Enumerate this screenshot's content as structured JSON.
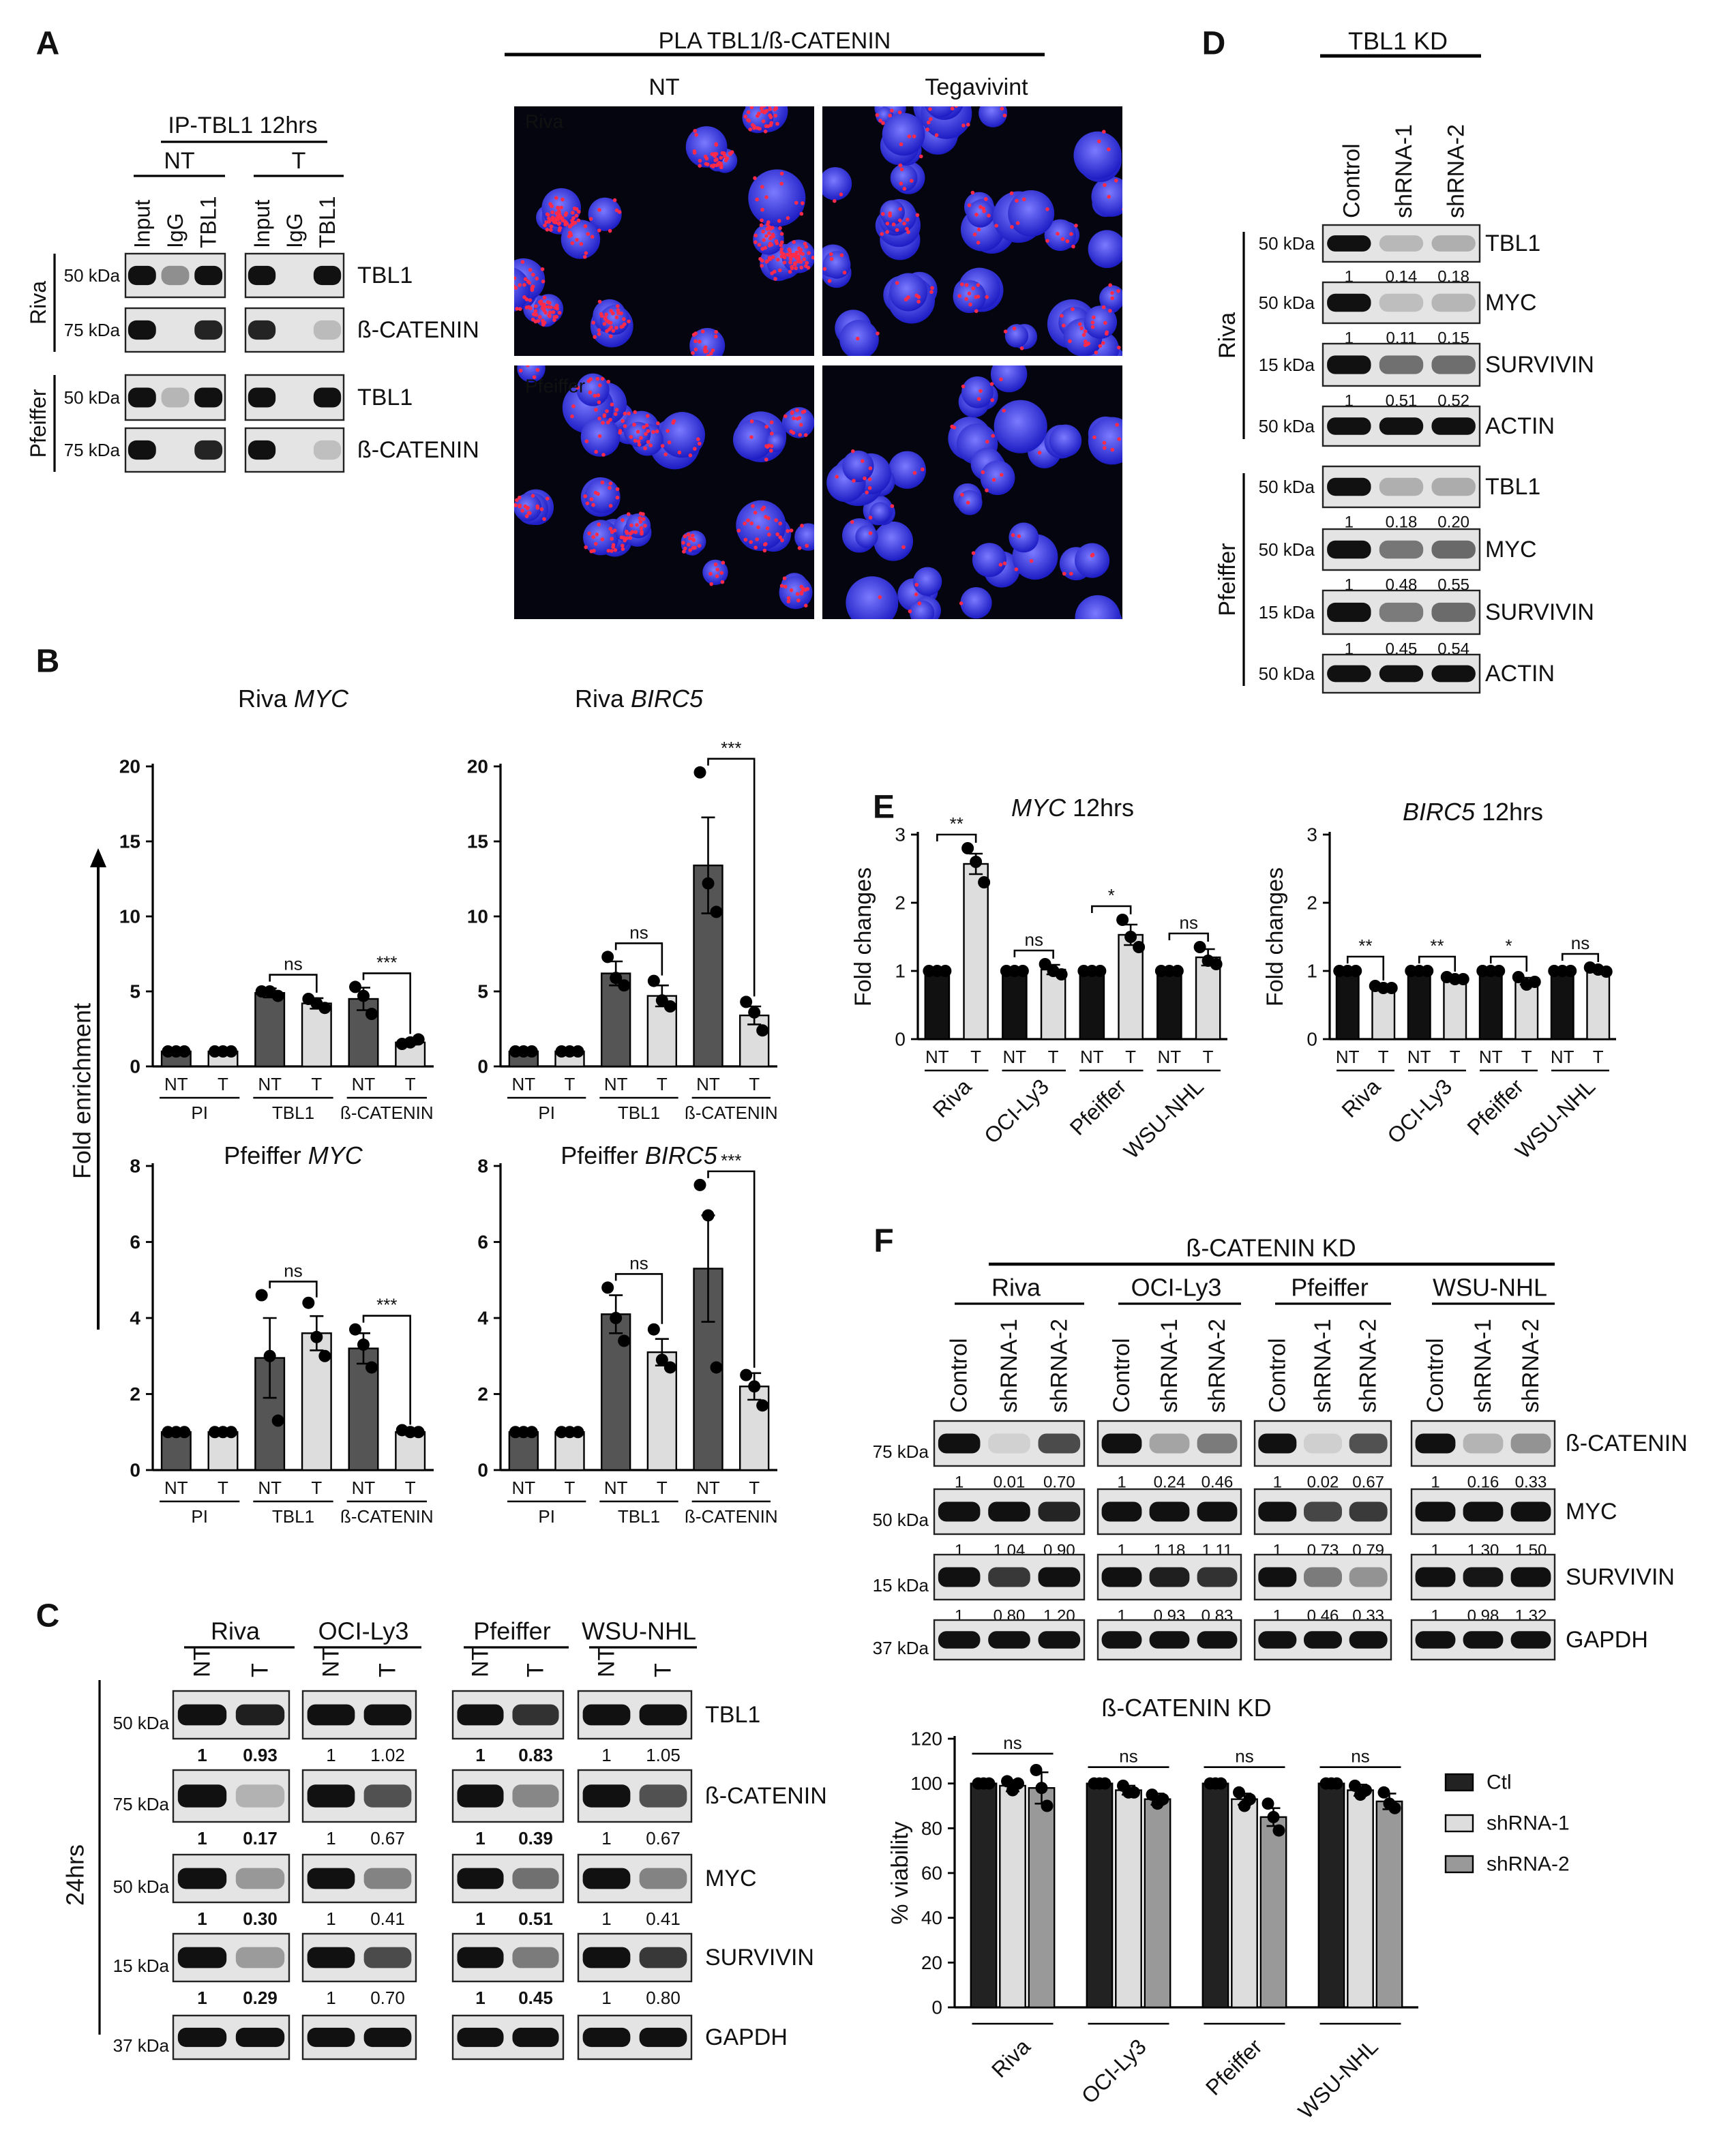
{
  "panel_labels": [
    "A",
    "B",
    "C",
    "D",
    "E",
    "F"
  ],
  "panel_a": {
    "ip": {
      "title": "IP-TBL1 12hrs",
      "groups": [
        "NT",
        "T"
      ],
      "lanes": [
        "Input",
        "IgG",
        "TBL1"
      ],
      "cell_lines": [
        {
          "name": "Riva",
          "rows": [
            {
              "protein": "TBL1",
              "kda": "50 kDa"
            },
            {
              "protein": "ß-CATENIN",
              "kda": "75 kDa"
            }
          ]
        },
        {
          "name": "Pfeiffer",
          "rows": [
            {
              "protein": "TBL1",
              "kda": "50 kDa"
            },
            {
              "protein": "ß-CATENIN",
              "kda": "75 kDa"
            }
          ]
        }
      ]
    },
    "pla": {
      "title": "PLA TBL1/ß-CATENIN",
      "columns": [
        "NT",
        "Tegavivint"
      ],
      "rows": [
        "Riva",
        "Pfeiffer"
      ]
    }
  },
  "panel_b": {
    "ylabel": "Fold enrichment"
  },
  "panel_c": {
    "time": "24hrs",
    "lanes": [
      "NT",
      "T"
    ],
    "cell_lines": [
      {
        "name": "Riva",
        "bold": true
      },
      {
        "name": "OCI-Ly3",
        "bold": false
      },
      {
        "name": "Pfeiffer",
        "bold": true
      },
      {
        "name": "WSU-NHL",
        "bold": false
      }
    ],
    "rows": [
      {
        "protein": "TBL1",
        "kda": "50 kDa",
        "quant": [
          [
            "1",
            "0.93"
          ],
          [
            "1",
            "1.02"
          ],
          [
            "1",
            "0.83"
          ],
          [
            "1",
            "1.05"
          ]
        ]
      },
      {
        "protein": "ß-CATENIN",
        "kda": "75 kDa",
        "quant": [
          [
            "1",
            "0.17"
          ],
          [
            "1",
            "0.67"
          ],
          [
            "1",
            "0.39"
          ],
          [
            "1",
            "0.67"
          ]
        ]
      },
      {
        "protein": "MYC",
        "kda": "50 kDa",
        "quant": [
          [
            "1",
            "0.30"
          ],
          [
            "1",
            "0.41"
          ],
          [
            "1",
            "0.51"
          ],
          [
            "1",
            "0.41"
          ]
        ]
      },
      {
        "protein": "SURVIVIN",
        "kda": "15 kDa",
        "quant": [
          [
            "1",
            "0.29"
          ],
          [
            "1",
            "0.70"
          ],
          [
            "1",
            "0.45"
          ],
          [
            "1",
            "0.80"
          ]
        ]
      },
      {
        "protein": "GAPDH",
        "kda": "37 kDa"
      }
    ]
  },
  "panel_d": {
    "title": "TBL1 KD",
    "lanes": [
      "Control",
      "shRNA-1",
      "shRNA-2"
    ],
    "cell_lines": [
      {
        "name": "Riva",
        "rows": [
          {
            "protein": "TBL1",
            "kda": "50 kDa",
            "quant": [
              "1",
              "0.14",
              "0.18"
            ]
          },
          {
            "protein": "MYC",
            "kda": "50 kDa",
            "quant": [
              "1",
              "0.11",
              "0.15"
            ]
          },
          {
            "protein": "SURVIVIN",
            "kda": "15 kDa",
            "quant": [
              "1",
              "0.51",
              "0.52"
            ]
          },
          {
            "protein": "ACTIN",
            "kda": "50 kDa"
          }
        ]
      },
      {
        "name": "Pfeiffer",
        "rows": [
          {
            "protein": "TBL1",
            "kda": "50 kDa",
            "quant": [
              "1",
              "0.18",
              "0.20"
            ]
          },
          {
            "protein": "MYC",
            "kda": "50 kDa",
            "quant": [
              "1",
              "0.48",
              "0.55"
            ]
          },
          {
            "protein": "SURVIVIN",
            "kda": "15 kDa",
            "quant": [
              "1",
              "0.45",
              "0.54"
            ]
          },
          {
            "protein": "ACTIN",
            "kda": "50 kDa"
          }
        ]
      }
    ]
  },
  "panel_f_blot": {
    "title": "ß-CATENIN KD",
    "lanes": [
      "Control",
      "shRNA-1",
      "shRNA-2"
    ],
    "cell_lines": [
      "Riva",
      "OCI-Ly3",
      "Pfeiffer",
      "WSU-NHL"
    ],
    "rows": [
      {
        "protein": "ß-CATENIN",
        "kda": "75 kDa",
        "quant": [
          [
            "1",
            "0.01",
            "0.70"
          ],
          [
            "1",
            "0.24",
            "0.46"
          ],
          [
            "1",
            "0.02",
            "0.67"
          ],
          [
            "1",
            "0.16",
            "0.33"
          ]
        ]
      },
      {
        "protein": "MYC",
        "kda": "50 kDa",
        "quant": [
          [
            "1",
            "1.04",
            "0.90"
          ],
          [
            "1",
            "1.18",
            "1.11"
          ],
          [
            "1",
            "0.73",
            "0.79"
          ],
          [
            "1",
            "1.30",
            "1.50"
          ]
        ]
      },
      {
        "protein": "SURVIVIN",
        "kda": "15 kDa",
        "quant": [
          [
            "1",
            "0.80",
            "1.20"
          ],
          [
            "1",
            "0.93",
            "0.83"
          ],
          [
            "1",
            "0.46",
            "0.33"
          ],
          [
            "1",
            "0.98",
            "1.32"
          ]
        ]
      },
      {
        "protein": "GAPDH",
        "kda": "37 kDa"
      }
    ]
  },
  "chart_data": [
    {
      "type": "bar",
      "title": [
        {
          "text": "Riva"
        },
        {
          "text": "MYC",
          "italic": true
        }
      ],
      "categories": [
        "NT",
        "T",
        "NT",
        "T",
        "NT",
        "T"
      ],
      "groups": [
        "PI",
        "TBL1",
        "ß-CATENIN"
      ],
      "group_style": "underline",
      "values": [
        1,
        1,
        4.9,
        4.2,
        4.5,
        1.6
      ],
      "errors": [
        0.05,
        0.05,
        0.3,
        0.35,
        0.75,
        0.15
      ],
      "points": [
        [
          1,
          1,
          1
        ],
        [
          1,
          1,
          1
        ],
        [
          5.0,
          5.0,
          4.7
        ],
        [
          4.5,
          4.2,
          3.9
        ],
        [
          5.3,
          4.7,
          3.5
        ],
        [
          1.5,
          1.6,
          1.8
        ]
      ],
      "colors": [
        "#555555",
        "#dddddd",
        "#555555",
        "#dddddd",
        "#555555",
        "#dddddd"
      ],
      "ylim": [
        0,
        20
      ],
      "yticks": [
        0,
        5,
        10,
        15,
        20
      ],
      "brackets": [
        {
          "from": 2,
          "to": 3,
          "label": "ns"
        },
        {
          "from": 4,
          "to": 5,
          "label": "***"
        }
      ]
    },
    {
      "type": "bar",
      "title": [
        {
          "text": "Riva"
        },
        {
          "text": "BIRC5",
          "italic": true
        }
      ],
      "categories": [
        "NT",
        "T",
        "NT",
        "T",
        "NT",
        "T"
      ],
      "groups": [
        "PI",
        "TBL1",
        "ß-CATENIN"
      ],
      "group_style": "underline",
      "values": [
        1,
        1,
        6.2,
        4.7,
        13.4,
        3.4
      ],
      "errors": [
        0.05,
        0.05,
        0.8,
        0.7,
        3.2,
        0.6
      ],
      "points": [
        [
          1,
          1,
          1
        ],
        [
          1,
          1,
          1
        ],
        [
          7.3,
          5.9,
          5.4
        ],
        [
          5.7,
          4.4,
          4.0
        ],
        [
          19.6,
          12.2,
          10.3
        ],
        [
          4.3,
          3.6,
          2.4
        ]
      ],
      "colors": [
        "#555555",
        "#dddddd",
        "#555555",
        "#dddddd",
        "#555555",
        "#dddddd"
      ],
      "ylim": [
        0,
        20
      ],
      "yticks": [
        0,
        5,
        10,
        15,
        20
      ],
      "brackets": [
        {
          "from": 2,
          "to": 3,
          "label": "ns"
        },
        {
          "from": 4,
          "to": 5,
          "label": "***"
        }
      ]
    },
    {
      "type": "bar",
      "title": [
        {
          "text": "Pfeiffer"
        },
        {
          "text": "MYC",
          "italic": true
        }
      ],
      "categories": [
        "NT",
        "T",
        "NT",
        "T",
        "NT",
        "T"
      ],
      "groups": [
        "PI",
        "TBL1",
        "ß-CATENIN"
      ],
      "group_style": "underline",
      "values": [
        1,
        1,
        2.95,
        3.6,
        3.2,
        1.0
      ],
      "errors": [
        0.02,
        0.02,
        1.05,
        0.45,
        0.4,
        0.05
      ],
      "points": [
        [
          1,
          1,
          1
        ],
        [
          1,
          1,
          1
        ],
        [
          4.6,
          3.0,
          1.3
        ],
        [
          4.4,
          3.5,
          3.0
        ],
        [
          3.7,
          3.3,
          2.7
        ],
        [
          1.05,
          1.0,
          1.0
        ]
      ],
      "colors": [
        "#555555",
        "#dddddd",
        "#555555",
        "#dddddd",
        "#555555",
        "#dddddd"
      ],
      "ylim": [
        0,
        8
      ],
      "yticks": [
        0,
        2,
        4,
        6,
        8
      ],
      "brackets": [
        {
          "from": 2,
          "to": 3,
          "label": "ns"
        },
        {
          "from": 4,
          "to": 5,
          "label": "***"
        }
      ]
    },
    {
      "type": "bar",
      "title": [
        {
          "text": "Pfeiffer"
        },
        {
          "text": "BIRC5",
          "italic": true
        }
      ],
      "categories": [
        "NT",
        "T",
        "NT",
        "T",
        "NT",
        "T"
      ],
      "groups": [
        "PI",
        "TBL1",
        "ß-CATENIN"
      ],
      "group_style": "underline",
      "values": [
        1,
        1,
        4.1,
        3.1,
        5.3,
        2.2
      ],
      "errors": [
        0.02,
        0.02,
        0.5,
        0.35,
        1.4,
        0.35
      ],
      "points": [
        [
          1,
          1,
          1
        ],
        [
          1,
          1,
          1
        ],
        [
          4.8,
          4.0,
          3.4
        ],
        [
          3.7,
          2.9,
          2.7
        ],
        [
          7.5,
          6.7,
          2.7
        ],
        [
          2.5,
          2.2,
          1.7
        ]
      ],
      "colors": [
        "#555555",
        "#dddddd",
        "#555555",
        "#dddddd",
        "#555555",
        "#dddddd"
      ],
      "ylim": [
        0,
        8
      ],
      "yticks": [
        0,
        2,
        4,
        6,
        8
      ],
      "brackets": [
        {
          "from": 2,
          "to": 3,
          "label": "ns"
        },
        {
          "from": 4,
          "to": 5,
          "label": "***"
        }
      ]
    },
    {
      "type": "bar",
      "title": [
        {
          "text": "MYC",
          "italic": true
        },
        {
          "text": "12hrs"
        }
      ],
      "ylabel": "Fold changes",
      "categories": [
        "NT",
        "T",
        "NT",
        "T",
        "NT",
        "T",
        "NT",
        "T"
      ],
      "groups": [
        "Riva",
        "OCI-Ly3",
        "Pfeiffer",
        "WSU-NHL"
      ],
      "group_style": "rotated",
      "values": [
        1,
        2.57,
        1,
        1.02,
        1,
        1.53,
        1,
        1.2
      ],
      "errors": [
        0.01,
        0.15,
        0.01,
        0.07,
        0.01,
        0.15,
        0.01,
        0.12
      ],
      "points": [
        [
          1,
          1,
          1
        ],
        [
          2.8,
          2.6,
          2.3
        ],
        [
          1,
          1,
          1
        ],
        [
          1.1,
          1.0,
          0.95
        ],
        [
          1,
          1,
          1
        ],
        [
          1.75,
          1.5,
          1.35
        ],
        [
          1,
          1,
          1
        ],
        [
          1.35,
          1.15,
          1.1
        ]
      ],
      "colors": [
        "#111111",
        "#dddddd",
        "#111111",
        "#dddddd",
        "#111111",
        "#dddddd",
        "#111111",
        "#dddddd"
      ],
      "ylim": [
        0,
        3
      ],
      "yticks": [
        0,
        1,
        2,
        3
      ],
      "brackets": [
        {
          "from": 0,
          "to": 1,
          "label": "**"
        },
        {
          "from": 2,
          "to": 3,
          "label": "ns"
        },
        {
          "from": 4,
          "to": 5,
          "label": "*"
        },
        {
          "from": 6,
          "to": 7,
          "label": "ns"
        }
      ]
    },
    {
      "type": "bar",
      "title": [
        {
          "text": "BIRC5",
          "italic": true
        },
        {
          "text": "12hrs"
        }
      ],
      "ylabel": "Fold changes",
      "categories": [
        "NT",
        "T",
        "NT",
        "T",
        "NT",
        "T",
        "NT",
        "T"
      ],
      "groups": [
        "Riva",
        "OCI-Ly3",
        "Pfeiffer",
        "WSU-NHL"
      ],
      "group_style": "rotated",
      "values": [
        1,
        0.76,
        1,
        0.89,
        1,
        0.85,
        1,
        1.02
      ],
      "errors": [
        0.01,
        0.02,
        0.01,
        0.02,
        0.01,
        0.05,
        0.01,
        0.03
      ],
      "points": [
        [
          1,
          1,
          1
        ],
        [
          0.78,
          0.75,
          0.75
        ],
        [
          1,
          1,
          1
        ],
        [
          0.91,
          0.88,
          0.88
        ],
        [
          1,
          1,
          1
        ],
        [
          0.91,
          0.8,
          0.84
        ],
        [
          1,
          1,
          1
        ],
        [
          1.05,
          1.02,
          0.99
        ]
      ],
      "colors": [
        "#111111",
        "#dddddd",
        "#111111",
        "#dddddd",
        "#111111",
        "#dddddd",
        "#111111",
        "#dddddd"
      ],
      "ylim": [
        0,
        3
      ],
      "yticks": [
        0,
        1,
        2,
        3
      ],
      "brackets": [
        {
          "from": 0,
          "to": 1,
          "label": "**"
        },
        {
          "from": 2,
          "to": 3,
          "label": "**"
        },
        {
          "from": 4,
          "to": 5,
          "label": "*"
        },
        {
          "from": 6,
          "to": 7,
          "label": "ns"
        }
      ]
    },
    {
      "type": "grouped_bar",
      "title": [
        {
          "text": "ß-CATENIN KD"
        }
      ],
      "ylabel": "% viability",
      "categories": [
        "Riva",
        "OCI-Ly3",
        "Pfeiffer",
        "WSU-NHL"
      ],
      "series": [
        {
          "name": "Ctl",
          "color": "#222222",
          "values": [
            100,
            100,
            100,
            100
          ],
          "errors": [
            0,
            0,
            0,
            0
          ],
          "points": [
            [
              100,
              100,
              100
            ],
            [
              100,
              100,
              100
            ],
            [
              100,
              100,
              100
            ],
            [
              100,
              100,
              100
            ]
          ]
        },
        {
          "name": "shRNA-1",
          "color": "#dddddd",
          "values": [
            99,
            97,
            93,
            97
          ],
          "errors": [
            2.5,
            2,
            2.5,
            2.5
          ],
          "points": [
            [
              101,
              97,
              100
            ],
            [
              99,
              96,
              96
            ],
            [
              96,
              90,
              93
            ],
            [
              99,
              95,
              97
            ]
          ]
        },
        {
          "name": "shRNA-2",
          "color": "#999999",
          "values": [
            98,
            93,
            85,
            92
          ],
          "errors": [
            7,
            2.5,
            4,
            3.5
          ],
          "points": [
            [
              106,
              98,
              90
            ],
            [
              95,
              91,
              93
            ],
            [
              91,
              85,
              79
            ],
            [
              96,
              91,
              89
            ]
          ]
        }
      ],
      "ylim": [
        0,
        120
      ],
      "yticks": [
        0,
        20,
        40,
        60,
        80,
        100,
        120
      ],
      "legend": "right",
      "brackets": [
        {
          "category": 0,
          "label": "ns"
        },
        {
          "category": 1,
          "label": "ns"
        },
        {
          "category": 2,
          "label": "ns"
        },
        {
          "category": 3,
          "label": "ns"
        }
      ]
    }
  ]
}
